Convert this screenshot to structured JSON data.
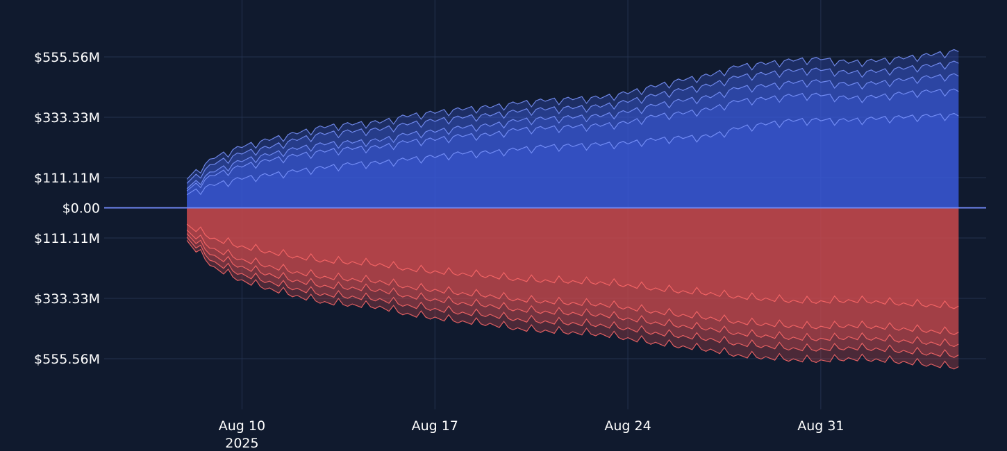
{
  "chart_data": {
    "type": "area",
    "title": "",
    "xlabel": "",
    "ylabel": "",
    "x_range": [
      "2025-08-05T00:00",
      "2025-09-06T00:00"
    ],
    "y_range": [
      -620000000,
      620000000
    ],
    "grid": true,
    "x_ticks": [
      {
        "date": "2025-08-10",
        "label": "Aug 10",
        "sublabel": "2025"
      },
      {
        "date": "2025-08-17",
        "label": "Aug 17",
        "sublabel": ""
      },
      {
        "date": "2025-08-24",
        "label": "Aug 24",
        "sublabel": ""
      },
      {
        "date": "2025-08-31",
        "label": "Aug 31",
        "sublabel": ""
      }
    ],
    "y_ticks": [
      {
        "value": 555560000,
        "label": "$555.56M"
      },
      {
        "value": 333330000,
        "label": "$333.33M"
      },
      {
        "value": 111110000,
        "label": "$111.11M"
      },
      {
        "value": 0,
        "label": "$0.00"
      },
      {
        "value": -111110000,
        "label": "$111.11M"
      },
      {
        "value": -333330000,
        "label": "$333.33M"
      },
      {
        "value": -555560000,
        "label": "$555.56M"
      }
    ],
    "colors": {
      "background": "#101a2e",
      "grid": "#24324f",
      "text": "#ffffff",
      "positive_line": "#7d97ff",
      "positive_fill": "#3a5bd9",
      "negative_line": "#ff6a6a",
      "negative_fill": "#c94a4f",
      "zero_line": "#6f86f2"
    },
    "series": [
      {
        "side": "positive",
        "values": [
          [
            8,
            48
          ],
          [
            9,
            82
          ],
          [
            10,
            105
          ],
          [
            11,
            118
          ],
          [
            12,
            132
          ],
          [
            13,
            145
          ],
          [
            14,
            158
          ],
          [
            15,
            162
          ],
          [
            16,
            175
          ],
          [
            17,
            185
          ],
          [
            18,
            198
          ],
          [
            19,
            200
          ],
          [
            20,
            212
          ],
          [
            21,
            222
          ],
          [
            22,
            225
          ],
          [
            23,
            230
          ],
          [
            24,
            235
          ],
          [
            25,
            248
          ],
          [
            26,
            255
          ],
          [
            27,
            260
          ],
          [
            28,
            290
          ],
          [
            29,
            305
          ],
          [
            30,
            318
          ],
          [
            31,
            320
          ],
          [
            32,
            318
          ],
          [
            33,
            325
          ],
          [
            34,
            330
          ],
          [
            35,
            335
          ],
          [
            36,
            338
          ]
        ]
      },
      {
        "side": "positive",
        "values": [
          [
            8,
            62
          ],
          [
            9,
            118
          ],
          [
            10,
            150
          ],
          [
            11,
            172
          ],
          [
            12,
            190
          ],
          [
            13,
            205
          ],
          [
            14,
            215
          ],
          [
            15,
            220
          ],
          [
            16,
            240
          ],
          [
            17,
            248
          ],
          [
            18,
            262
          ],
          [
            19,
            265
          ],
          [
            20,
            285
          ],
          [
            21,
            290
          ],
          [
            22,
            295
          ],
          [
            23,
            300
          ],
          [
            24,
            310
          ],
          [
            25,
            335
          ],
          [
            26,
            345
          ],
          [
            27,
            360
          ],
          [
            28,
            390
          ],
          [
            29,
            398
          ],
          [
            30,
            410
          ],
          [
            31,
            412
          ],
          [
            32,
            400
          ],
          [
            33,
            405
          ],
          [
            34,
            418
          ],
          [
            35,
            425
          ],
          [
            36,
            428
          ]
        ]
      },
      {
        "side": "positive",
        "values": [
          [
            8,
            70
          ],
          [
            9,
            132
          ],
          [
            10,
            170
          ],
          [
            11,
            193
          ],
          [
            12,
            215
          ],
          [
            13,
            232
          ],
          [
            14,
            238
          ],
          [
            15,
            245
          ],
          [
            16,
            268
          ],
          [
            17,
            278
          ],
          [
            18,
            293
          ],
          [
            19,
            300
          ],
          [
            20,
            318
          ],
          [
            21,
            325
          ],
          [
            22,
            330
          ],
          [
            23,
            335
          ],
          [
            24,
            350
          ],
          [
            25,
            375
          ],
          [
            26,
            392
          ],
          [
            27,
            405
          ],
          [
            28,
            438
          ],
          [
            29,
            445
          ],
          [
            30,
            458
          ],
          [
            31,
            462
          ],
          [
            32,
            450
          ],
          [
            33,
            455
          ],
          [
            34,
            468
          ],
          [
            35,
            478
          ],
          [
            36,
            485
          ]
        ]
      },
      {
        "side": "positive",
        "values": [
          [
            8,
            90
          ],
          [
            9,
            160
          ],
          [
            10,
            198
          ],
          [
            11,
            220
          ],
          [
            12,
            248
          ],
          [
            13,
            270
          ],
          [
            14,
            278
          ],
          [
            15,
            285
          ],
          [
            16,
            305
          ],
          [
            17,
            318
          ],
          [
            18,
            330
          ],
          [
            19,
            338
          ],
          [
            20,
            352
          ],
          [
            21,
            360
          ],
          [
            22,
            365
          ],
          [
            23,
            370
          ],
          [
            24,
            388
          ],
          [
            25,
            412
          ],
          [
            26,
            432
          ],
          [
            27,
            448
          ],
          [
            28,
            480
          ],
          [
            29,
            490
          ],
          [
            30,
            502
          ],
          [
            31,
            505
          ],
          [
            32,
            494
          ],
          [
            33,
            498
          ],
          [
            34,
            510
          ],
          [
            35,
            520
          ],
          [
            36,
            532
          ]
        ]
      },
      {
        "side": "positive",
        "values": [
          [
            8,
            105
          ],
          [
            9,
            182
          ],
          [
            10,
            222
          ],
          [
            11,
            248
          ],
          [
            12,
            272
          ],
          [
            13,
            295
          ],
          [
            14,
            305
          ],
          [
            15,
            312
          ],
          [
            16,
            335
          ],
          [
            17,
            348
          ],
          [
            18,
            360
          ],
          [
            19,
            368
          ],
          [
            20,
            382
          ],
          [
            21,
            392
          ],
          [
            22,
            398
          ],
          [
            23,
            402
          ],
          [
            24,
            420
          ],
          [
            25,
            445
          ],
          [
            26,
            468
          ],
          [
            27,
            485
          ],
          [
            28,
            518
          ],
          [
            29,
            528
          ],
          [
            30,
            540
          ],
          [
            31,
            545
          ],
          [
            32,
            532
          ],
          [
            33,
            538
          ],
          [
            34,
            548
          ],
          [
            35,
            560
          ],
          [
            36,
            575
          ]
        ]
      },
      {
        "side": "negative",
        "values": [
          [
            8,
            -60
          ],
          [
            9,
            -112
          ],
          [
            10,
            -140
          ],
          [
            11,
            -160
          ],
          [
            12,
            -178
          ],
          [
            13,
            -192
          ],
          [
            14,
            -198
          ],
          [
            15,
            -205
          ],
          [
            16,
            -222
          ],
          [
            17,
            -232
          ],
          [
            18,
            -240
          ],
          [
            19,
            -248
          ],
          [
            20,
            -260
          ],
          [
            21,
            -265
          ],
          [
            22,
            -268
          ],
          [
            23,
            -272
          ],
          [
            24,
            -282
          ],
          [
            25,
            -295
          ],
          [
            26,
            -305
          ],
          [
            27,
            -312
          ],
          [
            28,
            -325
          ],
          [
            29,
            -332
          ],
          [
            30,
            -340
          ],
          [
            31,
            -342
          ],
          [
            32,
            -338
          ],
          [
            33,
            -342
          ],
          [
            34,
            -350
          ],
          [
            35,
            -355
          ],
          [
            36,
            -362
          ]
        ]
      },
      {
        "side": "negative",
        "values": [
          [
            8,
            -82
          ],
          [
            9,
            -150
          ],
          [
            10,
            -188
          ],
          [
            11,
            -212
          ],
          [
            12,
            -235
          ],
          [
            13,
            -252
          ],
          [
            14,
            -260
          ],
          [
            15,
            -268
          ],
          [
            16,
            -288
          ],
          [
            17,
            -300
          ],
          [
            18,
            -312
          ],
          [
            19,
            -320
          ],
          [
            20,
            -335
          ],
          [
            21,
            -342
          ],
          [
            22,
            -348
          ],
          [
            23,
            -352
          ],
          [
            24,
            -365
          ],
          [
            25,
            -380
          ],
          [
            26,
            -392
          ],
          [
            27,
            -402
          ],
          [
            28,
            -418
          ],
          [
            29,
            -425
          ],
          [
            30,
            -432
          ],
          [
            31,
            -436
          ],
          [
            32,
            -430
          ],
          [
            33,
            -435
          ],
          [
            34,
            -442
          ],
          [
            35,
            -450
          ],
          [
            36,
            -458
          ]
        ]
      },
      {
        "side": "negative",
        "values": [
          [
            8,
            -95
          ],
          [
            9,
            -175
          ],
          [
            10,
            -215
          ],
          [
            11,
            -242
          ],
          [
            12,
            -266
          ],
          [
            13,
            -285
          ],
          [
            14,
            -292
          ],
          [
            15,
            -300
          ],
          [
            16,
            -322
          ],
          [
            17,
            -335
          ],
          [
            18,
            -348
          ],
          [
            19,
            -356
          ],
          [
            20,
            -372
          ],
          [
            21,
            -380
          ],
          [
            22,
            -385
          ],
          [
            23,
            -390
          ],
          [
            24,
            -405
          ],
          [
            25,
            -420
          ],
          [
            26,
            -432
          ],
          [
            27,
            -442
          ],
          [
            28,
            -460
          ],
          [
            29,
            -468
          ],
          [
            30,
            -476
          ],
          [
            31,
            -480
          ],
          [
            32,
            -474
          ],
          [
            33,
            -478
          ],
          [
            34,
            -486
          ],
          [
            35,
            -494
          ],
          [
            36,
            -502
          ]
        ]
      },
      {
        "side": "negative",
        "values": [
          [
            8,
            -108
          ],
          [
            9,
            -198
          ],
          [
            10,
            -242
          ],
          [
            11,
            -270
          ],
          [
            12,
            -296
          ],
          [
            13,
            -316
          ],
          [
            14,
            -325
          ],
          [
            15,
            -334
          ],
          [
            16,
            -356
          ],
          [
            17,
            -370
          ],
          [
            18,
            -384
          ],
          [
            19,
            -392
          ],
          [
            20,
            -408
          ],
          [
            21,
            -416
          ],
          [
            22,
            -422
          ],
          [
            23,
            -428
          ],
          [
            24,
            -442
          ],
          [
            25,
            -458
          ],
          [
            26,
            -470
          ],
          [
            27,
            -480
          ],
          [
            28,
            -498
          ],
          [
            29,
            -506
          ],
          [
            30,
            -515
          ],
          [
            31,
            -518
          ],
          [
            32,
            -512
          ],
          [
            33,
            -516
          ],
          [
            34,
            -525
          ],
          [
            35,
            -534
          ],
          [
            36,
            -542
          ]
        ]
      },
      {
        "side": "negative",
        "values": [
          [
            8,
            -120
          ],
          [
            9,
            -218
          ],
          [
            10,
            -265
          ],
          [
            11,
            -295
          ],
          [
            12,
            -322
          ],
          [
            13,
            -345
          ],
          [
            14,
            -354
          ],
          [
            15,
            -362
          ],
          [
            16,
            -388
          ],
          [
            17,
            -402
          ],
          [
            18,
            -416
          ],
          [
            19,
            -425
          ],
          [
            20,
            -442
          ],
          [
            21,
            -450
          ],
          [
            22,
            -456
          ],
          [
            23,
            -462
          ],
          [
            24,
            -478
          ],
          [
            25,
            -495
          ],
          [
            26,
            -508
          ],
          [
            27,
            -520
          ],
          [
            28,
            -540
          ],
          [
            29,
            -548
          ],
          [
            30,
            -556
          ],
          [
            31,
            -560
          ],
          [
            32,
            -552
          ],
          [
            33,
            -556
          ],
          [
            34,
            -565
          ],
          [
            35,
            -575
          ],
          [
            36,
            -585
          ]
        ]
      }
    ]
  }
}
